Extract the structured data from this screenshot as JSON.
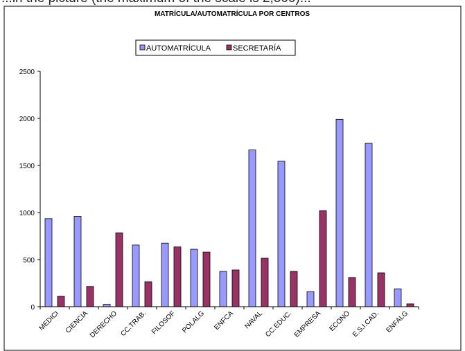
{
  "top_strip_text": "...in the picture (the maximum of the scale is 2,500)...",
  "chart_data": {
    "type": "bar",
    "title": "MATRÍCULA/AUTOMATRÍCULA POR CENTROS",
    "xlabel": "",
    "ylabel": "",
    "categories": [
      "MEDICI",
      "CIENCIA",
      "DERECHO",
      "CC.TRAB.",
      "FILOSOF",
      "POLALG",
      "ENFCA",
      "NAVAL",
      "CC.EDUC.",
      "EMPRESA",
      "ECONÓ",
      "E.S.I.CAD.",
      "ENFALG"
    ],
    "series": [
      {
        "name": "AUTOMATRÍCULA",
        "color": "#9999ff",
        "values": [
          935,
          960,
          25,
          655,
          675,
          610,
          375,
          1665,
          1545,
          160,
          1990,
          1735,
          190
        ]
      },
      {
        "name": "SECRETARÍA",
        "color": "#993366",
        "values": [
          110,
          215,
          785,
          265,
          635,
          580,
          390,
          515,
          375,
          1020,
          310,
          360,
          30
        ]
      }
    ],
    "ylim": [
      0,
      2500
    ],
    "yticks": [
      0,
      500,
      1000,
      1500,
      2000,
      2500
    ],
    "grid": false,
    "legend_position": "top-center"
  }
}
